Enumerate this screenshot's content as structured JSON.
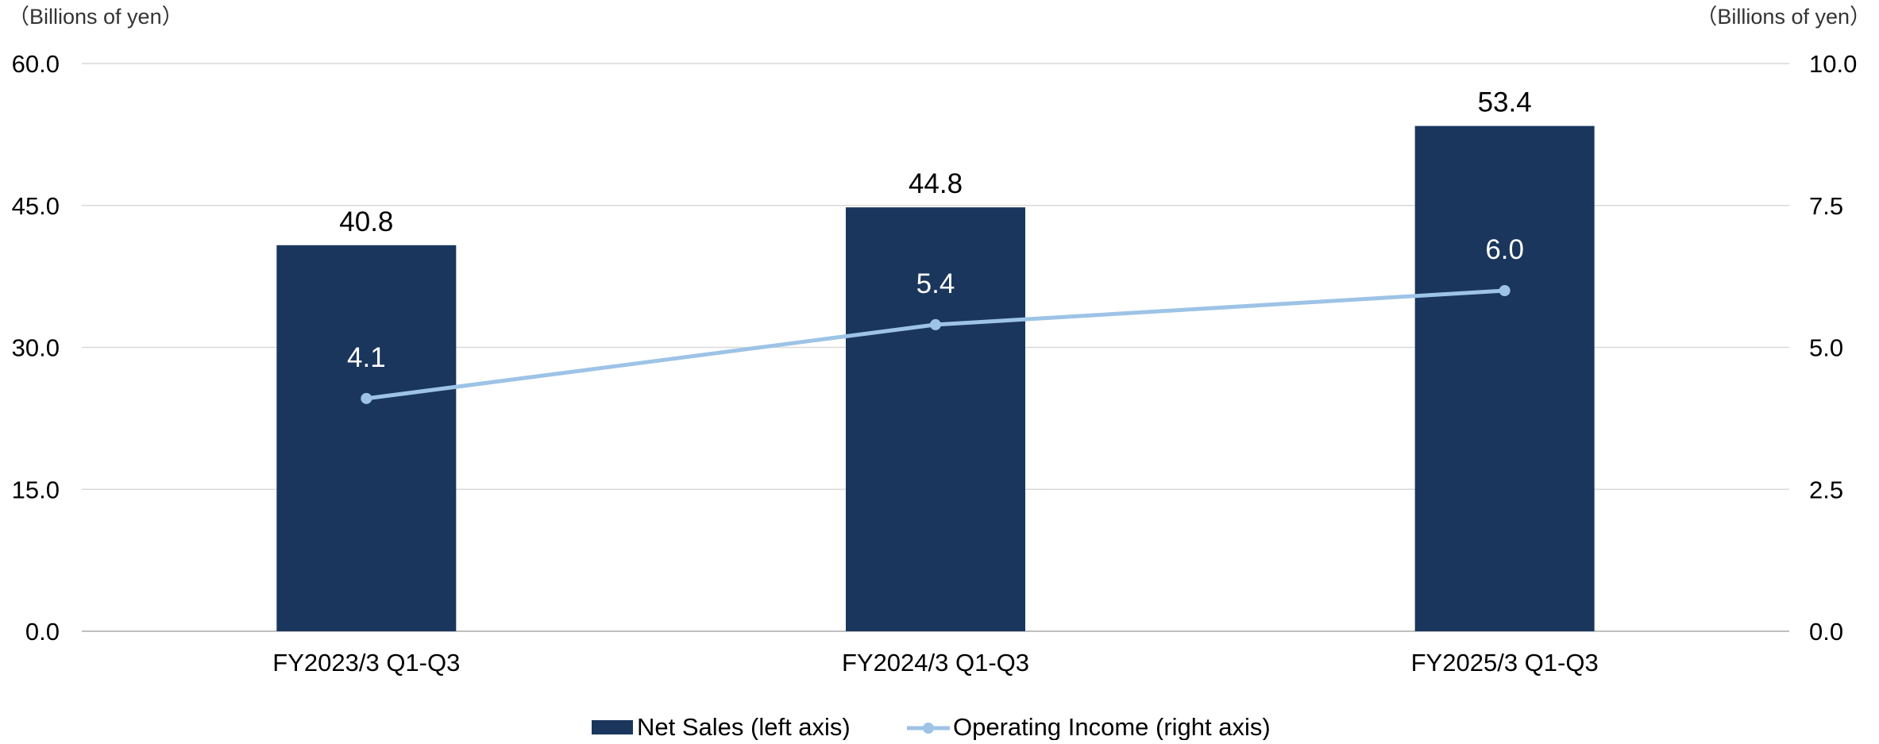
{
  "chart_data": {
    "type": "bar",
    "categories": [
      "FY2023/3 Q1-Q3",
      "FY2024/3 Q1-Q3",
      "FY2025/3 Q1-Q3"
    ],
    "series": [
      {
        "name": "Net Sales (left axis)",
        "type": "bar",
        "axis": "left",
        "values": [
          40.8,
          44.8,
          53.4
        ],
        "labels": [
          "40.8",
          "44.8",
          "53.4"
        ],
        "color": "#1a365d"
      },
      {
        "name": "Operating Income (right axis)",
        "type": "line",
        "axis": "right",
        "values": [
          4.1,
          5.4,
          6.0
        ],
        "labels": [
          "4.1",
          "5.4",
          "6.0"
        ],
        "color": "#9dc3e6"
      }
    ],
    "y_left": {
      "label": "（Billions of yen）",
      "min": 0,
      "max": 60,
      "ticks": [
        "0.0",
        "15.0",
        "30.0",
        "45.0",
        "60.0"
      ]
    },
    "y_right": {
      "label": "（Billions of yen）",
      "min": 0,
      "max": 10,
      "ticks": [
        "0.0",
        "2.5",
        "5.0",
        "7.5",
        "10.0"
      ]
    },
    "grid": true,
    "legend": "bottom-center",
    "colors": {
      "bar": "#1a365d",
      "line": "#9dc3e6",
      "grid": "#d9d9d9",
      "text": "#000000",
      "line_label": "#ffffff"
    }
  }
}
